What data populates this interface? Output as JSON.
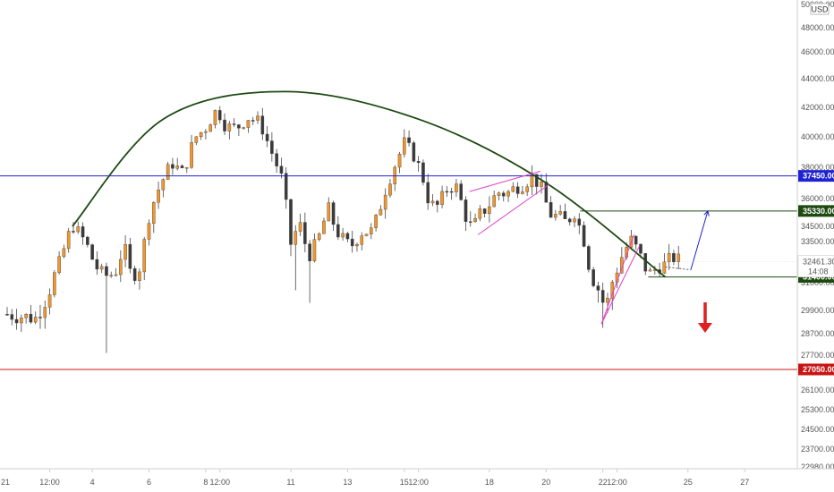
{
  "chart_data": {
    "type": "candlestick",
    "currency": "USD",
    "price_ticks": [
      50000,
      48000,
      46000,
      44000,
      42000,
      40000,
      38000,
      36000,
      34500,
      33500,
      32500,
      31000,
      29900,
      28700,
      27700,
      26100,
      25300,
      24500,
      23700,
      22980
    ],
    "price_tick_labels": [
      "50000.00",
      "48000.00",
      "46000.00",
      "44000.00",
      "42000.00",
      "40000.00",
      "38000.00",
      "36000.00",
      "34500.00",
      "33500.00",
      "32500.00",
      "31000.00",
      "29900.00",
      "28700.00",
      "27700.00",
      "26100.00",
      "25300.00",
      "24500.00",
      "23700.00",
      "22980.00"
    ],
    "date_ticks": [
      {
        "day": 2.5,
        "label": "12:00"
      },
      {
        "day": 4,
        "label": "4"
      },
      {
        "day": 6,
        "label": "6"
      },
      {
        "day": 8,
        "label": "8"
      },
      {
        "day": 8.5,
        "label": "12:00"
      },
      {
        "day": 11,
        "label": "11"
      },
      {
        "day": 13,
        "label": "13"
      },
      {
        "day": 15,
        "label": "15"
      },
      {
        "day": 15.5,
        "label": "12:00"
      },
      {
        "day": 18,
        "label": "18"
      },
      {
        "day": 20,
        "label": "20"
      },
      {
        "day": 22,
        "label": "22"
      },
      {
        "day": 22.5,
        "label": "12:00"
      },
      {
        "day": 25,
        "label": "25"
      },
      {
        "day": 27,
        "label": "27"
      },
      {
        "day": 29,
        "label": "2"
      }
    ],
    "left_edge_label": "21",
    "horizontal_levels": [
      {
        "price": 37450,
        "label": "37450.00",
        "color": "#1e22d0"
      },
      {
        "price": 35330,
        "label": "35330.00",
        "color": "#1e4a12"
      },
      {
        "price": 31400,
        "label": "31400.00",
        "color": "#1e4a12"
      },
      {
        "price": 27050,
        "label": "27050.00",
        "color": "#c81414"
      }
    ],
    "current_price": {
      "label": "32461.30",
      "countdown": "14:08",
      "price": 32461.3
    },
    "arc_points": [
      {
        "day": 3.3,
        "price": 34500
      },
      {
        "day": 6.5,
        "price": 41200
      },
      {
        "day": 10.8,
        "price": 43100
      },
      {
        "day": 15.5,
        "price": 41200
      },
      {
        "day": 20,
        "price": 37000
      },
      {
        "day": 24.2,
        "price": 31400
      }
    ],
    "rising_wedge_1": [
      {
        "day": 17.3,
        "price": 36450,
        "day2": 19.8,
        "price2": 37750
      },
      {
        "day": 17.6,
        "price": 33950,
        "day2": 20.1,
        "price2": 36900
      }
    ],
    "rising_wedge_2": [
      {
        "day": 21.95,
        "price": 29200,
        "day2": 23.1,
        "price2": 33950
      },
      {
        "day": 21.95,
        "price": 29200,
        "day2": 23.3,
        "price2": 33300
      }
    ],
    "scenario_up": [
      {
        "day": 24.2,
        "price": 32100
      },
      {
        "day": 25.1,
        "price": 31900
      },
      {
        "day": 25.7,
        "price": 35330
      }
    ],
    "colors": {
      "candle": "#f2962a",
      "wick": "#444444",
      "arc": "#1e4a12",
      "wedge": "#e040c8",
      "scenario": "#1e22d0",
      "down_arrow": "#e02020"
    }
  }
}
